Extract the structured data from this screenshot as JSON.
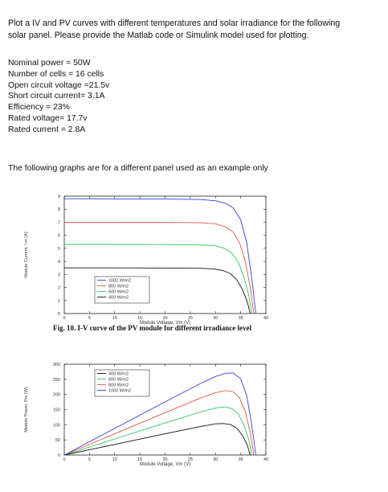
{
  "question": {
    "line1": "Plot a IV and PV curves with different temperatures and solar irradiance for the following",
    "line2": "solar panel. Please provide the Matlab code or Simulink model used for plotting."
  },
  "specs": [
    "Nominal power = 50W",
    "Number of cells = 16 cells",
    "Open circuit voltage =21.5v",
    "Short circuit current= 3.1A",
    "Efficiency = 23%",
    "Rated voltage= 17.7v",
    "Rated current = 2.8A"
  ],
  "note": "The following graphs are for a different panel used as an example only",
  "colors": {
    "blue": "#3b3bd8",
    "red": "#e0573b",
    "green": "#2ec85a",
    "black": "#111111"
  },
  "chart_data": [
    {
      "type": "line",
      "caption": "Fig. 10.  I-V curve of the PV module for different irradiance level",
      "xlabel": "Module Voltage, Vm (V)",
      "ylabel": "Module Current, I m (A)",
      "xlim": [
        0,
        40
      ],
      "ylim": [
        0,
        9
      ],
      "xticks": [
        0,
        5,
        10,
        15,
        20,
        25,
        30,
        35,
        40
      ],
      "yticks": [
        0,
        1,
        2,
        3,
        4,
        5,
        6,
        7,
        8,
        9
      ],
      "legend_position": "bottom-left",
      "series": [
        {
          "name": "1000 W/m2",
          "color": "#3b3bd8",
          "x": [
            0,
            10,
            20,
            27,
            30,
            32,
            33.5,
            35,
            36.2,
            37.2,
            38
          ],
          "y": [
            8.8,
            8.79,
            8.78,
            8.74,
            8.65,
            8.45,
            8.1,
            7.2,
            5.4,
            2.7,
            0
          ]
        },
        {
          "name": "800 W/m2",
          "color": "#e0573b",
          "x": [
            0,
            10,
            20,
            27,
            30,
            32,
            33.5,
            34.8,
            35.9,
            36.9,
            37.6
          ],
          "y": [
            7.0,
            7.0,
            6.99,
            6.96,
            6.88,
            6.65,
            6.25,
            5.4,
            4.0,
            2.0,
            0
          ]
        },
        {
          "name": "600 W/m2",
          "color": "#2ec85a",
          "x": [
            0,
            10,
            20,
            27,
            29.8,
            31.8,
            33.2,
            34.5,
            35.6,
            36.6,
            37.2
          ],
          "y": [
            5.3,
            5.3,
            5.29,
            5.26,
            5.2,
            5.0,
            4.65,
            3.95,
            2.85,
            1.4,
            0
          ]
        },
        {
          "name": "400 W/m2",
          "color": "#111111",
          "x": [
            0,
            10,
            20,
            27,
            29.5,
            31.5,
            33,
            34.3,
            35.4,
            36.3,
            36.9
          ],
          "y": [
            3.5,
            3.5,
            3.49,
            3.47,
            3.43,
            3.3,
            3.05,
            2.55,
            1.8,
            0.9,
            0
          ]
        }
      ]
    },
    {
      "type": "line",
      "xlabel": "Module Voltage, Vm (V)",
      "ylabel": "Module Power, Pm (W)",
      "xlim": [
        0,
        40
      ],
      "ylim": [
        0,
        300
      ],
      "xticks": [
        0,
        5,
        10,
        15,
        20,
        25,
        30,
        35,
        40
      ],
      "yticks": [
        0,
        50,
        100,
        150,
        200,
        250,
        300
      ],
      "legend_position": "top-left",
      "series": [
        {
          "name": "400 W/m2",
          "color": "#111111",
          "x": [
            0,
            10,
            20,
            27,
            30,
            31.5,
            33,
            34.3,
            35.4,
            36.3,
            36.9
          ],
          "y": [
            0,
            35,
            70,
            94,
            103,
            104,
            100.5,
            87.5,
            63.7,
            32.7,
            0
          ]
        },
        {
          "name": "600 W/m2",
          "color": "#2ec85a",
          "x": [
            0,
            10,
            20,
            27,
            30,
            31.8,
            33.2,
            34.5,
            35.6,
            36.6,
            37.2
          ],
          "y": [
            0,
            53,
            106,
            142,
            155,
            159,
            154,
            136,
            101,
            51,
            0
          ]
        },
        {
          "name": "800 W/m2",
          "color": "#e0573b",
          "x": [
            0,
            10,
            20,
            27,
            30,
            32,
            33.5,
            34.8,
            35.9,
            36.9,
            37.6
          ],
          "y": [
            0,
            70,
            140,
            188,
            206,
            213,
            209,
            188,
            144,
            74,
            0
          ]
        },
        {
          "name": "1000 W/m2",
          "color": "#3b3bd8",
          "x": [
            0,
            10,
            20,
            27,
            30,
            32,
            33.5,
            35,
            36.2,
            37.2,
            38
          ],
          "y": [
            0,
            88,
            175.6,
            236,
            259.5,
            270,
            271,
            252,
            195,
            100,
            0
          ]
        }
      ]
    }
  ]
}
